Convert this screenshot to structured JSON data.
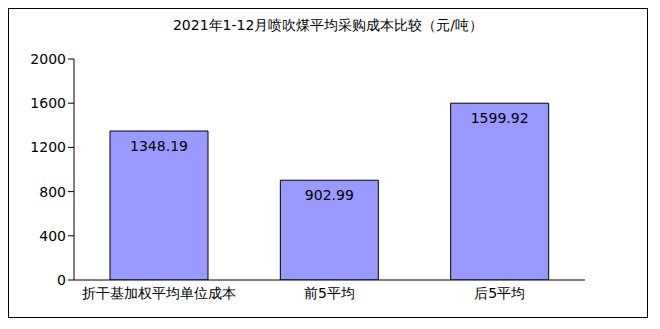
{
  "chart_data": {
    "type": "bar",
    "title": "2021年1-12月喷吹煤平均采购成本比较（元/吨）",
    "categories": [
      "折干基加权平均单位成本",
      "前5平均",
      "后5平均"
    ],
    "values": [
      1348.19,
      902.99,
      1599.92
    ],
    "color": "#9999ff",
    "ylim": [
      0,
      2000
    ],
    "yticks": [
      0,
      400,
      800,
      1200,
      1600,
      2000
    ],
    "grid": false,
    "data_labels": true
  }
}
